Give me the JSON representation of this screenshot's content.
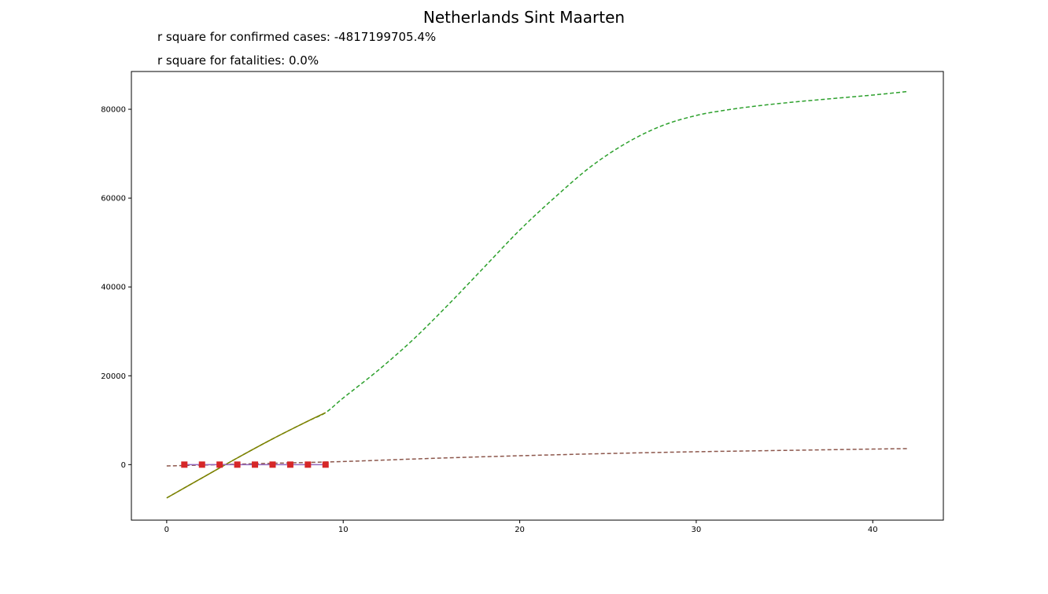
{
  "chart_data": {
    "type": "line",
    "title": "Netherlands Sint Maarten",
    "annotations": [
      "r square for confirmed cases: -4817199705.4%",
      "r square for fatalities: 0.0%"
    ],
    "xlabel": "",
    "ylabel": "",
    "xlim": [
      -2,
      44
    ],
    "ylim": [
      -12500,
      88500
    ],
    "xticks": [
      0,
      10,
      20,
      30,
      40
    ],
    "yticks": [
      0,
      20000,
      40000,
      60000,
      80000
    ],
    "grid": false,
    "legend": "none",
    "series": [
      {
        "kind": "fit-dashed",
        "color": "#2ca02c",
        "x": [
          0,
          2,
          4,
          6,
          8,
          9,
          10,
          12,
          14,
          16,
          18,
          20,
          22,
          24,
          26,
          28,
          30,
          32,
          34,
          36,
          38,
          40,
          42
        ],
        "y": [
          -7500,
          -3000,
          1500,
          5800,
          9800,
          11700,
          15000,
          21300,
          28300,
          36200,
          44500,
          52800,
          60200,
          67000,
          72300,
          76200,
          78600,
          80000,
          81000,
          81800,
          82500,
          83200,
          84000
        ]
      },
      {
        "kind": "fit-solid",
        "color": "#808000",
        "x": [
          0,
          2,
          4,
          6,
          8,
          9
        ],
        "y": [
          -7500,
          -3000,
          1500,
          5800,
          9800,
          11700
        ]
      },
      {
        "kind": "fit-dashed",
        "color": "#8c564b",
        "x": [
          0,
          5,
          10,
          15,
          20,
          25,
          30,
          35,
          40,
          42
        ],
        "y": [
          -300,
          200,
          700,
          1400,
          2000,
          2500,
          2900,
          3200,
          3500,
          3600
        ]
      },
      {
        "kind": "line-markers",
        "color": "#d62728",
        "x": [
          1,
          2,
          3,
          4,
          5,
          6,
          7,
          8,
          9
        ],
        "y": [
          0,
          0,
          0,
          0,
          0,
          0,
          0,
          0,
          0
        ]
      }
    ]
  }
}
